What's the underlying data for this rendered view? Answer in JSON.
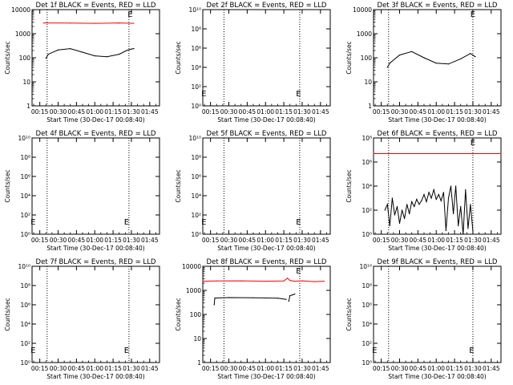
{
  "colors": {
    "events": "#000000",
    "lld": "#ff0000",
    "frame": "#000000"
  },
  "shared": {
    "ylabel": "Counts/sec",
    "xlabel": "Start Time (30-Dec-17 00:08:40)",
    "x_ticks": [
      "00:15",
      "00:30",
      "00:45",
      "01:00",
      "01:15",
      "01:30",
      "01:45"
    ]
  },
  "chart_data": [
    {
      "type": "line",
      "title": "Det 1f BLACK = Events, RED = LLD",
      "y_log": true,
      "ylim": [
        1,
        10000
      ],
      "y_ticks": [
        "1",
        "10",
        "100",
        "1000",
        "10000"
      ],
      "x_minutes": [
        8.67,
        113
      ],
      "vlines": [
        21,
        88
      ],
      "annotations": [
        {
          "text": "E",
          "x": 89,
          "y": 10000
        }
      ],
      "series": [
        {
          "color": "lld",
          "x": [
            18,
            40,
            60,
            80,
            92
          ],
          "y": [
            2800,
            2750,
            2700,
            2800,
            2700
          ]
        },
        {
          "color": "events",
          "x": [
            20,
            22,
            30,
            40,
            50,
            60,
            70,
            80,
            86,
            90,
            92
          ],
          "y": [
            95,
            140,
            210,
            240,
            170,
            120,
            110,
            140,
            200,
            230,
            240
          ]
        }
      ]
    },
    {
      "type": "line",
      "title": "Det 2f BLACK = Events, RED = LLD",
      "y_log": true,
      "ylim": [
        1,
        10000000000
      ],
      "y_ticks": [
        "10⁰",
        "10²",
        "10⁴",
        "10⁶",
        "10⁸",
        "10¹⁰"
      ],
      "x_minutes": [
        8.67,
        113
      ],
      "vlines": [
        26,
        88
      ],
      "annotations": [
        {
          "text": "E",
          "x": 9.5,
          "y": 10
        },
        {
          "text": "E",
          "x": 87,
          "y": 10
        }
      ],
      "series": []
    },
    {
      "type": "line",
      "title": "Det 3f BLACK = Events, RED = LLD",
      "y_log": true,
      "ylim": [
        1,
        10000
      ],
      "y_ticks": [
        "1",
        "10",
        "100",
        "1000",
        "10000"
      ],
      "x_minutes": [
        8.67,
        113
      ],
      "vlines": [
        21,
        90
      ],
      "annotations": [
        {
          "text": "E",
          "x": 90,
          "y": 10000
        }
      ],
      "series": [
        {
          "color": "events",
          "x": [
            20,
            22,
            30,
            40,
            50,
            60,
            70,
            80,
            88,
            92
          ],
          "y": [
            40,
            60,
            130,
            180,
            100,
            60,
            55,
            90,
            150,
            110
          ]
        }
      ]
    },
    {
      "type": "line",
      "title": "Det 4f BLACK = Events, RED = LLD",
      "y_log": true,
      "ylim": [
        1,
        10000000000
      ],
      "y_ticks": [
        "10⁰",
        "10²",
        "10⁴",
        "10⁶",
        "10⁸",
        "10¹⁰"
      ],
      "x_minutes": [
        8.67,
        113
      ],
      "vlines": [
        21,
        88
      ],
      "annotations": [
        {
          "text": "E",
          "x": 9.5,
          "y": 10
        },
        {
          "text": "E",
          "x": 86,
          "y": 10
        }
      ],
      "series": []
    },
    {
      "type": "line",
      "title": "Det 5f BLACK = Events, RED = LLD",
      "y_log": true,
      "ylim": [
        1,
        10000000000
      ],
      "y_ticks": [
        "10⁰",
        "10²",
        "10⁴",
        "10⁶",
        "10⁸",
        "10¹⁰"
      ],
      "x_minutes": [
        8.67,
        113
      ],
      "vlines": [
        26,
        88
      ],
      "annotations": [
        {
          "text": "E",
          "x": 9.5,
          "y": 10
        },
        {
          "text": "E",
          "x": 87,
          "y": 10
        }
      ],
      "series": []
    },
    {
      "type": "line",
      "title": "Det 6f BLACK = Events, RED = LLD",
      "y_log": true,
      "ylim": [
        1,
        100000000
      ],
      "y_ticks": [
        "10⁰",
        "10²",
        "10⁴",
        "10⁶",
        "10⁸"
      ],
      "x_minutes": [
        8.67,
        113
      ],
      "vlines": [
        21,
        90
      ],
      "annotations": [
        {
          "text": "E",
          "x": 90,
          "y": 100000000
        }
      ],
      "series": [
        {
          "color": "lld",
          "x": [
            8.67,
            113
          ],
          "y": [
            5000000,
            5000000
          ]
        },
        {
          "color": "events",
          "x": [
            18,
            20,
            22,
            24,
            26,
            28,
            30,
            32,
            34,
            36,
            38,
            40,
            42,
            44,
            46,
            48,
            50,
            52,
            54,
            56,
            58,
            60,
            62,
            64,
            66,
            68,
            70,
            72,
            74,
            76,
            78,
            80,
            82,
            84,
            86,
            88,
            90
          ],
          "y": [
            100,
            300,
            5,
            1000,
            40,
            200,
            8,
            100,
            20,
            300,
            50,
            500,
            200,
            800,
            300,
            600,
            2000,
            500,
            3000,
            1000,
            5000,
            800,
            2000,
            600,
            3000,
            2,
            1000,
            10000,
            50,
            10000,
            5,
            200,
            1,
            5000,
            3,
            300,
            2
          ]
        }
      ]
    },
    {
      "type": "line",
      "title": "Det 7f BLACK = Events, RED = LLD",
      "y_log": true,
      "ylim": [
        1,
        10000000000
      ],
      "y_ticks": [
        "10⁰",
        "10²",
        "10⁴",
        "10⁶",
        "10⁸",
        "10¹⁰"
      ],
      "x_minutes": [
        8.67,
        113
      ],
      "vlines": [
        21,
        88
      ],
      "annotations": [
        {
          "text": "E",
          "x": 9.5,
          "y": 10
        },
        {
          "text": "E",
          "x": 86,
          "y": 10
        }
      ],
      "series": []
    },
    {
      "type": "line",
      "title": "Det 8f BLACK = Events, RED = LLD",
      "y_log": true,
      "ylim": [
        1,
        10000
      ],
      "y_ticks": [
        "1",
        "10",
        "100",
        "1000",
        "10000"
      ],
      "x_minutes": [
        8.67,
        113
      ],
      "vlines": [
        26,
        88
      ],
      "annotations": [
        {
          "text": "E",
          "x": 87,
          "y": 10000
        }
      ],
      "series": [
        {
          "color": "lld",
          "x": [
            8.67,
            20,
            40,
            60,
            75,
            78,
            80,
            84,
            90,
            100,
            108
          ],
          "y": [
            2400,
            2450,
            2500,
            2400,
            2450,
            3200,
            2600,
            2400,
            2500,
            2300,
            2400
          ]
        },
        {
          "color": "events",
          "x": [
            18,
            18.5,
            30,
            50,
            70,
            77
          ],
          "y": [
            250,
            480,
            500,
            490,
            470,
            420
          ]
        },
        {
          "color": "events",
          "x": [
            79,
            80,
            82,
            84
          ],
          "y": [
            350,
            600,
            650,
            700
          ]
        }
      ]
    },
    {
      "type": "line",
      "title": "Det 9f BLACK = Events, RED = LLD",
      "y_log": true,
      "ylim": [
        1,
        10000000000
      ],
      "y_ticks": [
        "10⁰",
        "10²",
        "10⁴",
        "10⁶",
        "10⁸",
        "10¹⁰"
      ],
      "x_minutes": [
        8.67,
        113
      ],
      "vlines": [
        21,
        90
      ],
      "annotations": [
        {
          "text": "E",
          "x": 9.5,
          "y": 10
        },
        {
          "text": "E",
          "x": 89,
          "y": 10
        }
      ],
      "series": []
    }
  ]
}
